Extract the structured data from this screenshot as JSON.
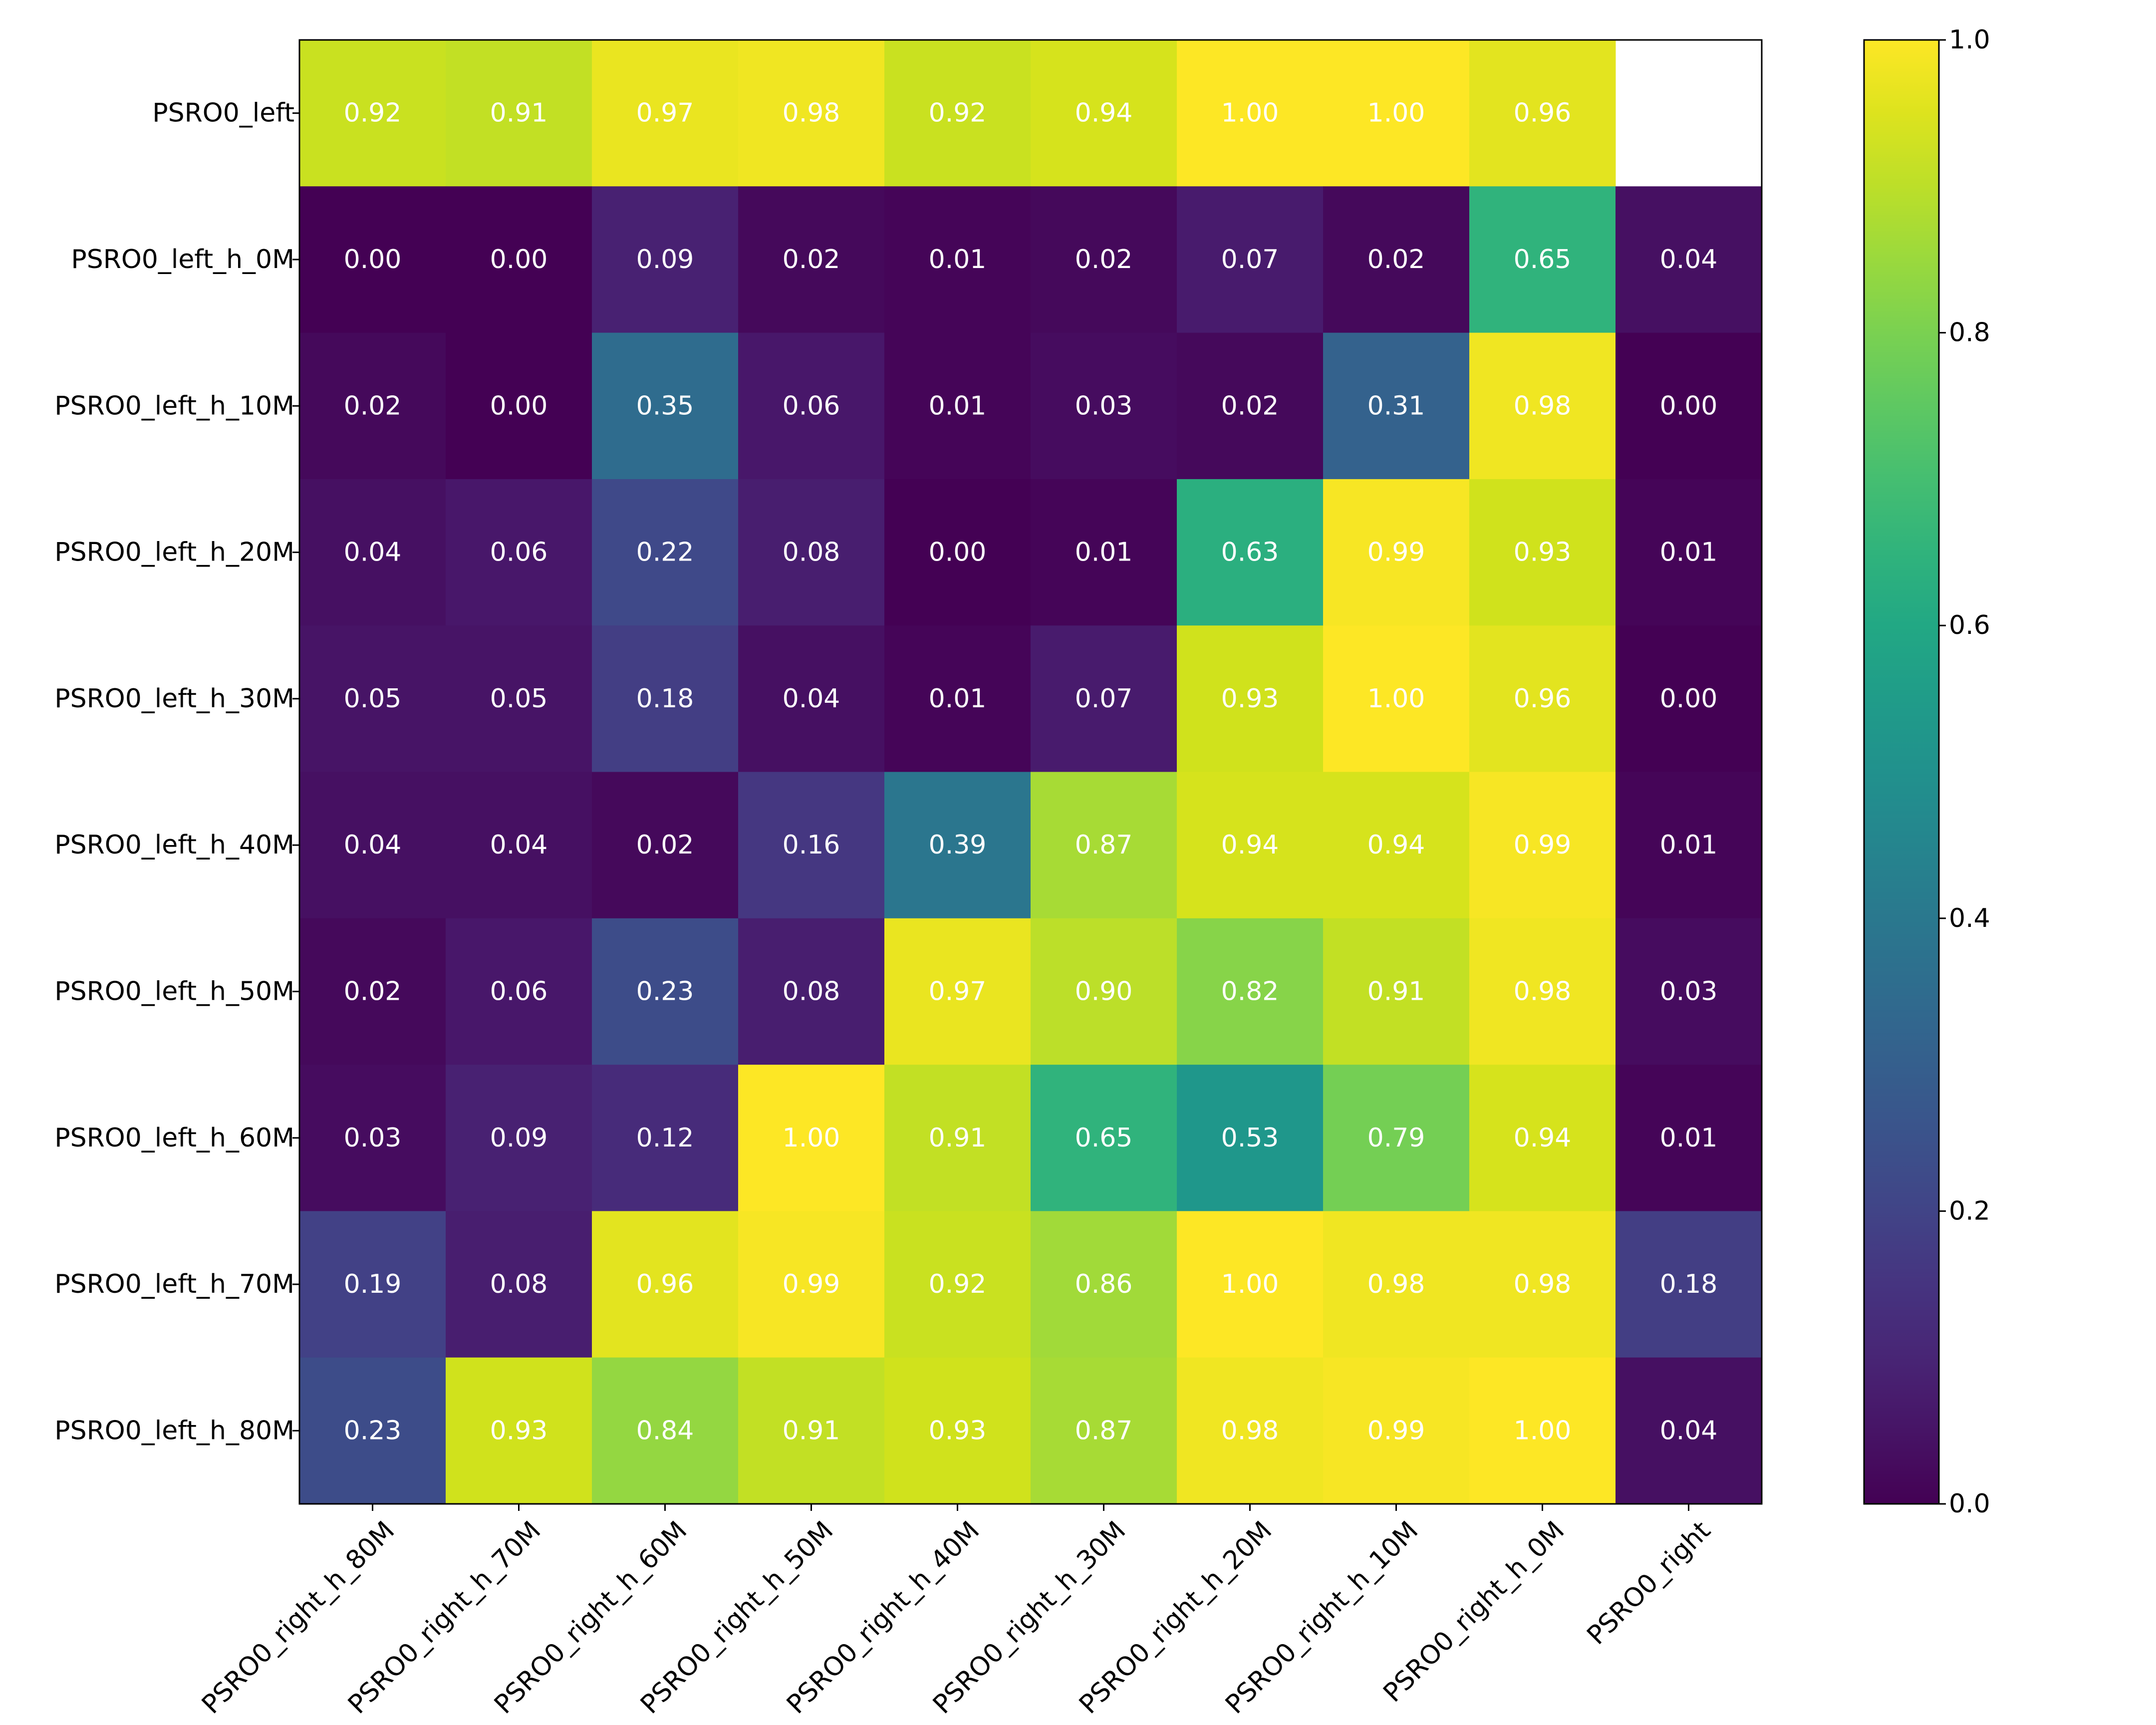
{
  "chart_data": {
    "type": "heatmap",
    "title": "",
    "xlabel": "",
    "ylabel": "",
    "colormap": "viridis",
    "vlim": [
      0.0,
      1.0
    ],
    "x_categories": [
      "PSRO0_right_h_80M",
      "PSRO0_right_h_70M",
      "PSRO0_right_h_60M",
      "PSRO0_right_h_50M",
      "PSRO0_right_h_40M",
      "PSRO0_right_h_30M",
      "PSRO0_right_h_20M",
      "PSRO0_right_h_10M",
      "PSRO0_right_h_0M",
      "PSRO0_right"
    ],
    "y_categories": [
      "PSRO0_left",
      "PSRO0_left_h_0M",
      "PSRO0_left_h_10M",
      "PSRO0_left_h_20M",
      "PSRO0_left_h_30M",
      "PSRO0_left_h_40M",
      "PSRO0_left_h_50M",
      "PSRO0_left_h_60M",
      "PSRO0_left_h_70M",
      "PSRO0_left_h_80M"
    ],
    "values": [
      [
        0.92,
        0.91,
        0.97,
        0.98,
        0.92,
        0.94,
        1.0,
        1.0,
        0.96,
        null
      ],
      [
        0.0,
        0.0,
        0.09,
        0.02,
        0.01,
        0.02,
        0.07,
        0.02,
        0.65,
        0.04
      ],
      [
        0.02,
        0.0,
        0.35,
        0.06,
        0.01,
        0.03,
        0.02,
        0.31,
        0.98,
        0.0
      ],
      [
        0.04,
        0.06,
        0.22,
        0.08,
        0.0,
        0.01,
        0.63,
        0.99,
        0.93,
        0.01
      ],
      [
        0.05,
        0.05,
        0.18,
        0.04,
        0.01,
        0.07,
        0.93,
        1.0,
        0.96,
        0.0
      ],
      [
        0.04,
        0.04,
        0.02,
        0.16,
        0.39,
        0.87,
        0.94,
        0.94,
        0.99,
        0.01
      ],
      [
        0.02,
        0.06,
        0.23,
        0.08,
        0.97,
        0.9,
        0.82,
        0.91,
        0.98,
        0.03
      ],
      [
        0.03,
        0.09,
        0.12,
        1.0,
        0.91,
        0.65,
        0.53,
        0.79,
        0.94,
        0.01
      ],
      [
        0.19,
        0.08,
        0.96,
        0.99,
        0.92,
        0.86,
        1.0,
        0.98,
        0.98,
        0.18
      ],
      [
        0.23,
        0.93,
        0.84,
        0.91,
        0.93,
        0.87,
        0.98,
        0.99,
        1.0,
        0.04
      ]
    ],
    "colorbar_ticks": [
      "0.0",
      "0.2",
      "0.4",
      "0.6",
      "0.8",
      "1.0"
    ],
    "grid": false,
    "legend": "colorbar-right"
  }
}
